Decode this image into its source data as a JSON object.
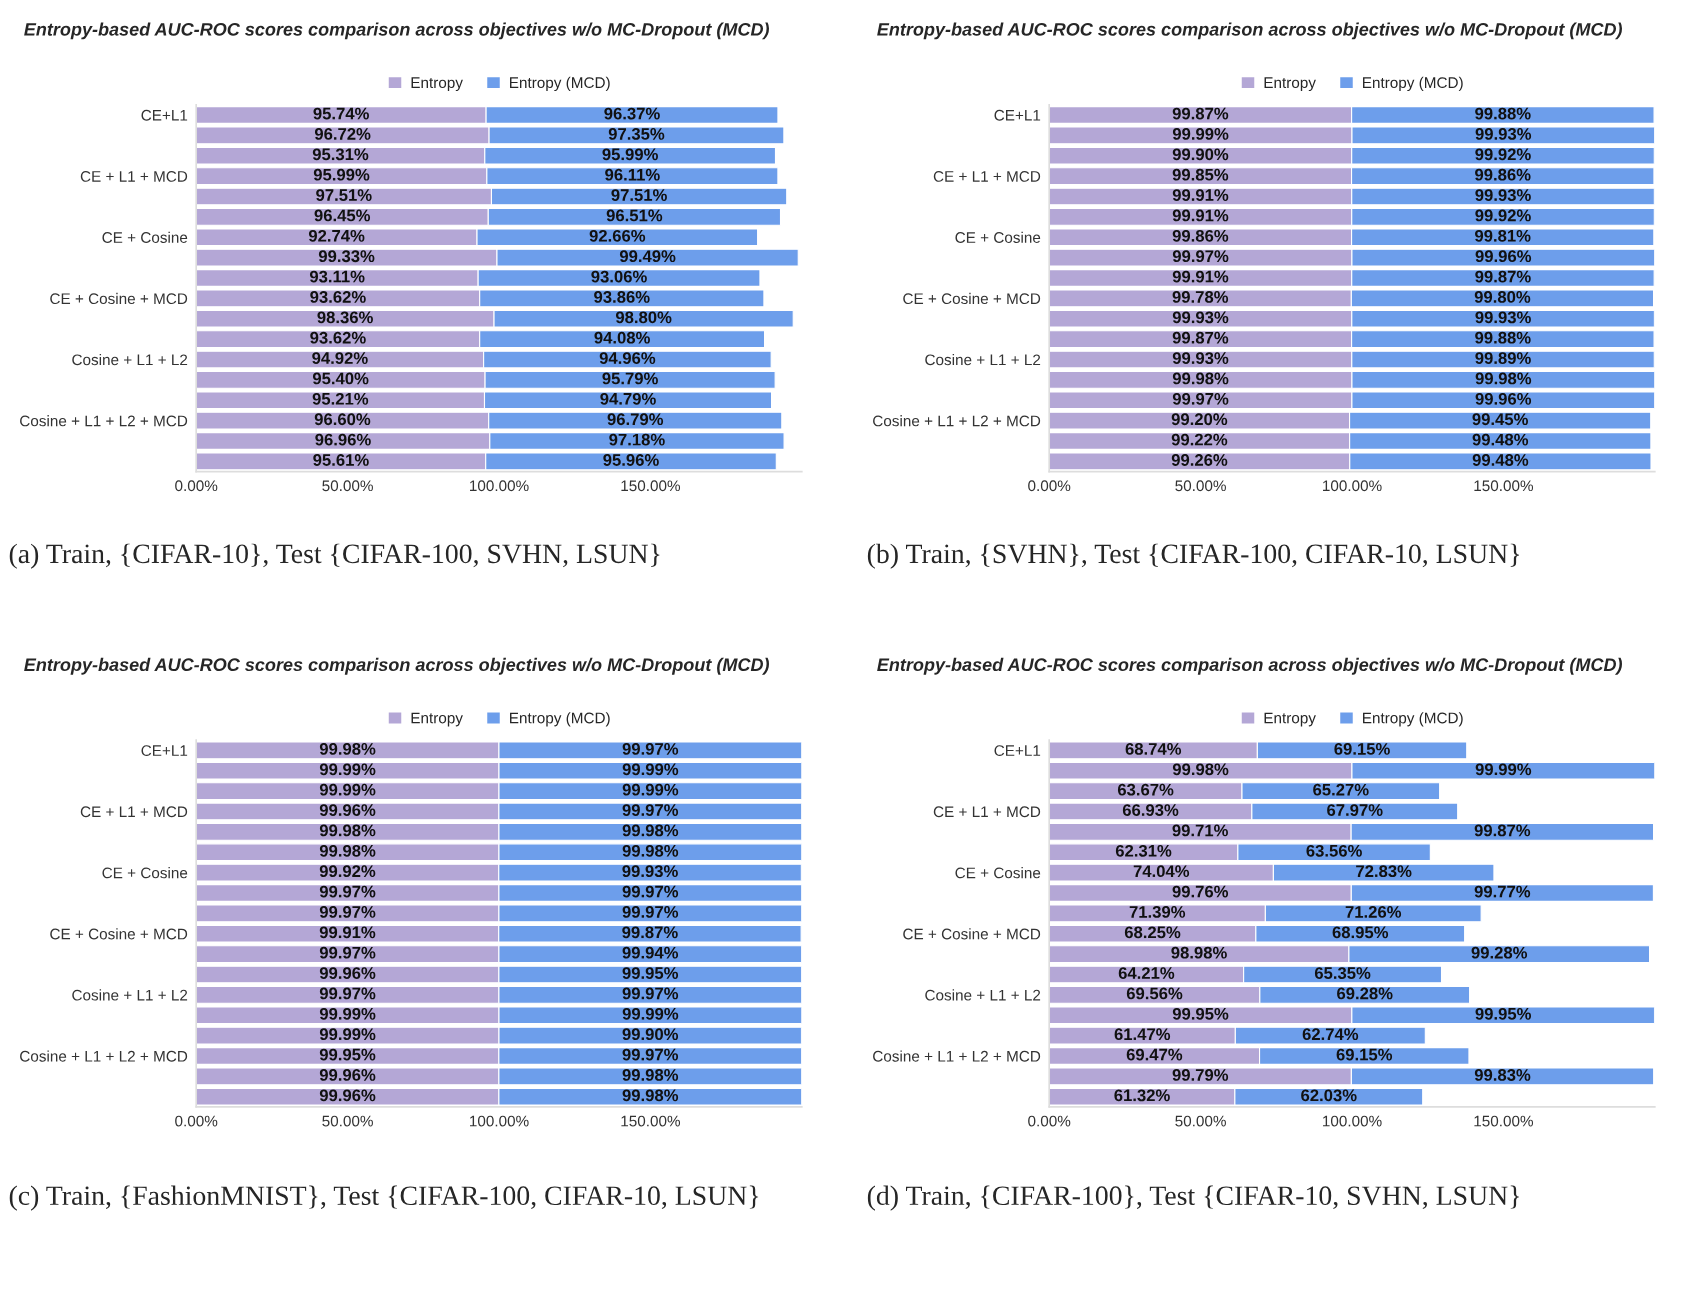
{
  "chart_data": [
    {
      "type": "bar",
      "orientation": "horizontal",
      "stacked": true,
      "title": "Entropy-based AUC-ROC scores comparison across objectives w/o MC-Dropout (MCD)",
      "categories": [
        "CE+L1",
        null,
        null,
        "CE + L1 + MCD",
        null,
        null,
        "CE + Cosine",
        null,
        null,
        "CE + Cosine + MCD",
        null,
        null,
        "Cosine + L1 + L2",
        null,
        null,
        "Cosine + L1 + L2 + MCD",
        null,
        null
      ],
      "series": [
        {
          "name": "Entropy",
          "color": "#b4a7d6",
          "values": [
            95.74,
            96.72,
            95.31,
            95.99,
            97.51,
            96.45,
            92.74,
            99.33,
            93.11,
            93.62,
            98.36,
            93.62,
            94.92,
            95.4,
            95.21,
            96.6,
            96.96,
            95.61
          ],
          "value_labels": [
            "95.74%",
            "96.72%",
            "95.31%",
            "95.99%",
            "97.51%",
            "96.45%",
            "92.74%",
            "99.33%",
            "93.11%",
            "93.62%",
            "98.36%",
            "93.62%",
            "94.92%",
            "95.40%",
            "95.21%",
            "96.60%",
            "96.96%",
            "95.61%"
          ]
        },
        {
          "name": "Entropy (MCD)",
          "color": "#6d9eeb",
          "values": [
            96.37,
            97.35,
            95.99,
            96.11,
            97.51,
            96.51,
            92.66,
            99.49,
            93.06,
            93.86,
            98.8,
            94.08,
            94.96,
            95.79,
            94.79,
            96.79,
            97.18,
            95.96
          ],
          "value_labels": [
            "96.37%",
            "97.35%",
            "95.99%",
            "96.11%",
            "97.51%",
            "96.51%",
            "92.66%",
            "99.49%",
            "93.06%",
            "93.86%",
            "98.80%",
            "94.08%",
            "94.96%",
            "95.79%",
            "94.79%",
            "96.79%",
            "97.18%",
            "95.96%"
          ]
        }
      ],
      "xlim": [
        0,
        200
      ],
      "xticks": [
        {
          "value": 0,
          "label": "0.00%"
        },
        {
          "value": 50,
          "label": "50.00%"
        },
        {
          "value": 100,
          "label": "100.00%"
        },
        {
          "value": 150,
          "label": "150.00%"
        }
      ],
      "legend": "top",
      "annotations": [
        "(a) Train, {CIFAR-10}, Test {CIFAR-100, SVHN, LSUN}"
      ]
    },
    {
      "type": "bar",
      "orientation": "horizontal",
      "stacked": true,
      "title": "Entropy-based AUC-ROC scores comparison across objectives w/o MC-Dropout (MCD)",
      "categories": [
        "CE+L1",
        null,
        null,
        "CE + L1 + MCD",
        null,
        null,
        "CE + Cosine",
        null,
        null,
        "CE + Cosine + MCD",
        null,
        null,
        "Cosine + L1 + L2",
        null,
        null,
        "Cosine + L1 + L2 + MCD",
        null,
        null
      ],
      "series": [
        {
          "name": "Entropy",
          "color": "#b4a7d6",
          "values": [
            99.87,
            99.99,
            99.9,
            99.85,
            99.91,
            99.91,
            99.86,
            99.97,
            99.91,
            99.78,
            99.93,
            99.87,
            99.93,
            99.98,
            99.97,
            99.2,
            99.22,
            99.26
          ],
          "value_labels": [
            "99.87%",
            "99.99%",
            "99.90%",
            "99.85%",
            "99.91%",
            "99.91%",
            "99.86%",
            "99.97%",
            "99.91%",
            "99.78%",
            "99.93%",
            "99.87%",
            "99.93%",
            "99.98%",
            "99.97%",
            "99.20%",
            "99.22%",
            "99.26%"
          ]
        },
        {
          "name": "Entropy (MCD)",
          "color": "#6d9eeb",
          "values": [
            99.88,
            99.93,
            99.92,
            99.86,
            99.93,
            99.92,
            99.81,
            99.96,
            99.87,
            99.8,
            99.93,
            99.88,
            99.89,
            99.98,
            99.96,
            99.45,
            99.48,
            99.48
          ],
          "value_labels": [
            "99.88%",
            "99.93%",
            "99.92%",
            "99.86%",
            "99.93%",
            "99.92%",
            "99.81%",
            "99.96%",
            "99.87%",
            "99.80%",
            "99.93%",
            "99.88%",
            "99.89%",
            "99.98%",
            "99.96%",
            "99.45%",
            "99.48%",
            "99.48%"
          ]
        }
      ],
      "xlim": [
        0,
        200
      ],
      "xticks": [
        {
          "value": 0,
          "label": "0.00%"
        },
        {
          "value": 50,
          "label": "50.00%"
        },
        {
          "value": 100,
          "label": "100.00%"
        },
        {
          "value": 150,
          "label": "150.00%"
        }
      ],
      "legend": "top",
      "annotations": [
        "(b) Train, {SVHN}, Test {CIFAR-100, CIFAR-10, LSUN}"
      ]
    },
    {
      "type": "bar",
      "orientation": "horizontal",
      "stacked": true,
      "title": "Entropy-based AUC-ROC scores comparison across objectives w/o MC-Dropout (MCD)",
      "categories": [
        "CE+L1",
        null,
        null,
        "CE + L1 + MCD",
        null,
        null,
        "CE + Cosine",
        null,
        null,
        "CE + Cosine + MCD",
        null,
        null,
        "Cosine + L1 + L2",
        null,
        null,
        "Cosine + L1 + L2 + MCD",
        null,
        null
      ],
      "series": [
        {
          "name": "Entropy",
          "color": "#b4a7d6",
          "values": [
            99.98,
            99.99,
            99.99,
            99.96,
            99.98,
            99.98,
            99.92,
            99.97,
            99.97,
            99.91,
            99.97,
            99.96,
            99.97,
            99.99,
            99.99,
            99.95,
            99.96,
            99.96
          ],
          "value_labels": [
            "99.98%",
            "99.99%",
            "99.99%",
            "99.96%",
            "99.98%",
            "99.98%",
            "99.92%",
            "99.97%",
            "99.97%",
            "99.91%",
            "99.97%",
            "99.96%",
            "99.97%",
            "99.99%",
            "99.99%",
            "99.95%",
            "99.96%",
            "99.96%"
          ]
        },
        {
          "name": "Entropy (MCD)",
          "color": "#6d9eeb",
          "values": [
            99.97,
            99.99,
            99.99,
            99.97,
            99.98,
            99.98,
            99.93,
            99.97,
            99.97,
            99.87,
            99.94,
            99.95,
            99.97,
            99.99,
            99.9,
            99.97,
            99.98,
            99.98
          ],
          "value_labels": [
            "99.97%",
            "99.99%",
            "99.99%",
            "99.97%",
            "99.98%",
            "99.98%",
            "99.93%",
            "99.97%",
            "99.97%",
            "99.87%",
            "99.94%",
            "99.95%",
            "99.97%",
            "99.99%",
            "99.90%",
            "99.97%",
            "99.98%",
            "99.98%"
          ]
        }
      ],
      "xlim": [
        0,
        200
      ],
      "xticks": [
        {
          "value": 0,
          "label": "0.00%"
        },
        {
          "value": 50,
          "label": "50.00%"
        },
        {
          "value": 100,
          "label": "100.00%"
        },
        {
          "value": 150,
          "label": "150.00%"
        }
      ],
      "legend": "top",
      "annotations": [
        "(c) Train, {FashionMNIST}, Test {CIFAR-100, CIFAR-10, LSUN}"
      ]
    },
    {
      "type": "bar",
      "orientation": "horizontal",
      "stacked": true,
      "title": "Entropy-based AUC-ROC scores comparison across objectives w/o MC-Dropout (MCD)",
      "categories": [
        "CE+L1",
        null,
        null,
        "CE + L1 + MCD",
        null,
        null,
        "CE + Cosine",
        null,
        null,
        "CE + Cosine + MCD",
        null,
        null,
        "Cosine + L1 + L2",
        null,
        null,
        "Cosine + L1 + L2 + MCD",
        null,
        null
      ],
      "series": [
        {
          "name": "Entropy",
          "color": "#b4a7d6",
          "values": [
            68.74,
            99.98,
            63.67,
            66.93,
            99.71,
            62.31,
            74.04,
            99.76,
            71.39,
            68.25,
            98.98,
            64.21,
            69.56,
            99.95,
            61.47,
            69.47,
            99.79,
            61.32
          ],
          "value_labels": [
            "68.74%",
            "99.98%",
            "63.67%",
            "66.93%",
            "99.71%",
            "62.31%",
            "74.04%",
            "99.76%",
            "71.39%",
            "68.25%",
            "98.98%",
            "64.21%",
            "69.56%",
            "99.95%",
            "61.47%",
            "69.47%",
            "99.79%",
            "61.32%"
          ]
        },
        {
          "name": "Entropy (MCD)",
          "color": "#6d9eeb",
          "values": [
            69.15,
            99.99,
            65.27,
            67.97,
            99.87,
            63.56,
            72.83,
            99.77,
            71.26,
            68.95,
            99.28,
            65.35,
            69.28,
            99.95,
            62.74,
            69.15,
            99.83,
            62.03
          ],
          "value_labels": [
            "69.15%",
            "99.99%",
            "65.27%",
            "67.97%",
            "99.87%",
            "63.56%",
            "72.83%",
            "99.77%",
            "71.26%",
            "68.95%",
            "99.28%",
            "65.35%",
            "69.28%",
            "99.95%",
            "62.74%",
            "69.15%",
            "99.83%",
            "62.03%"
          ]
        }
      ],
      "xlim": [
        0,
        200
      ],
      "xticks": [
        {
          "value": 0,
          "label": "0.00%"
        },
        {
          "value": 50,
          "label": "50.00%"
        },
        {
          "value": 100,
          "label": "100.00%"
        },
        {
          "value": 150,
          "label": "150.00%"
        }
      ],
      "legend": "top",
      "annotations": [
        "(d) Train, {CIFAR-100}, Test {CIFAR-10, SVHN, LSUN}"
      ]
    }
  ]
}
